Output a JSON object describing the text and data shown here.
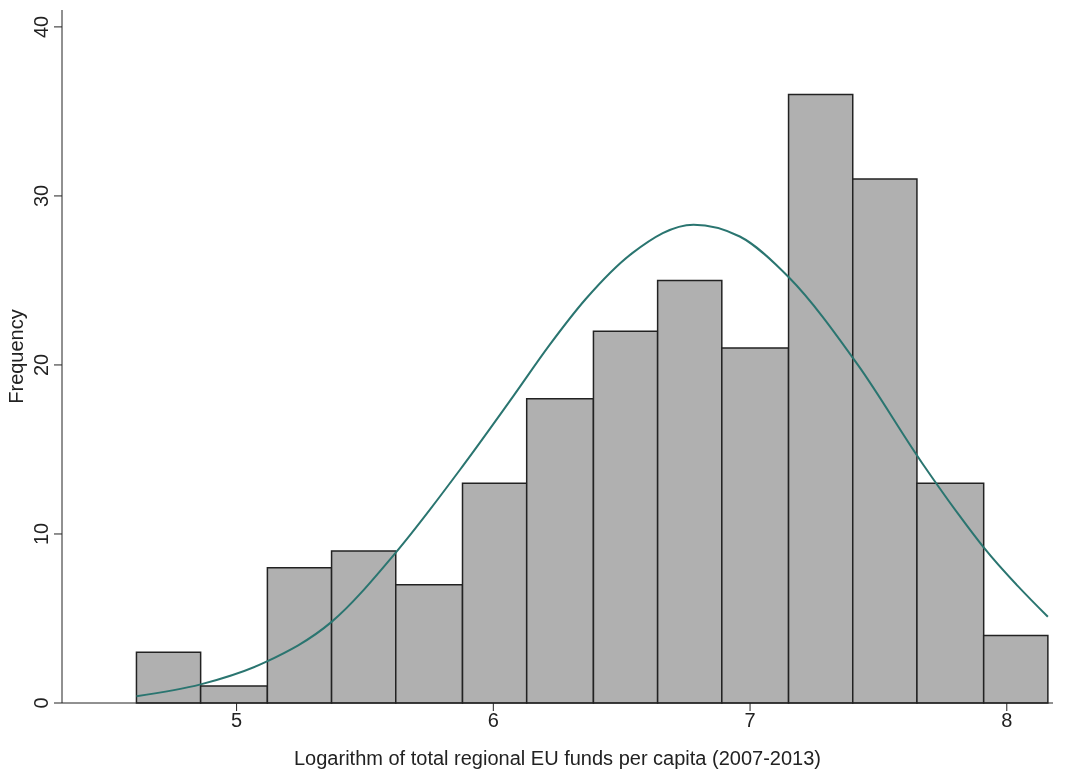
{
  "chart_data": {
    "type": "histogram",
    "xlabel": "Logarithm of total regional EU funds per capita (2007-2013)",
    "ylabel": "Frequency",
    "bins": [
      4.61,
      4.86,
      5.12,
      5.37,
      5.62,
      5.88,
      6.13,
      6.39,
      6.64,
      6.89,
      7.15,
      7.4,
      7.65,
      7.91,
      8.16
    ],
    "values": [
      3,
      1,
      8,
      9,
      7,
      13,
      18,
      22,
      25,
      21,
      36,
      31,
      13,
      4
    ],
    "color": "#b0b0b0",
    "series": [
      {
        "type": "line",
        "color": "#2a7570",
        "x": [
          4.61,
          4.86,
          5.11,
          5.37,
          5.62,
          5.88,
          6.08,
          6.22,
          6.36,
          6.54,
          6.78,
          6.96,
          7.15,
          7.42,
          7.67,
          7.81,
          7.91,
          8.16
        ],
        "values": [
          0.4,
          1.1,
          2.4,
          4.8,
          8.9,
          14.0,
          18.2,
          21.2,
          23.9,
          26.6,
          28.3,
          27.6,
          25.2,
          20.0,
          14.2,
          11.2,
          9.2,
          5.1
        ]
      }
    ],
    "xlim": [
      4.32,
      8.18
    ],
    "xticks": [
      5,
      6,
      7,
      8
    ],
    "ylim": [
      0,
      41
    ],
    "yticks": [
      0,
      10,
      20,
      30,
      40
    ],
    "grid": false,
    "legend": false,
    "marker": "none",
    "line_style": "solid"
  }
}
